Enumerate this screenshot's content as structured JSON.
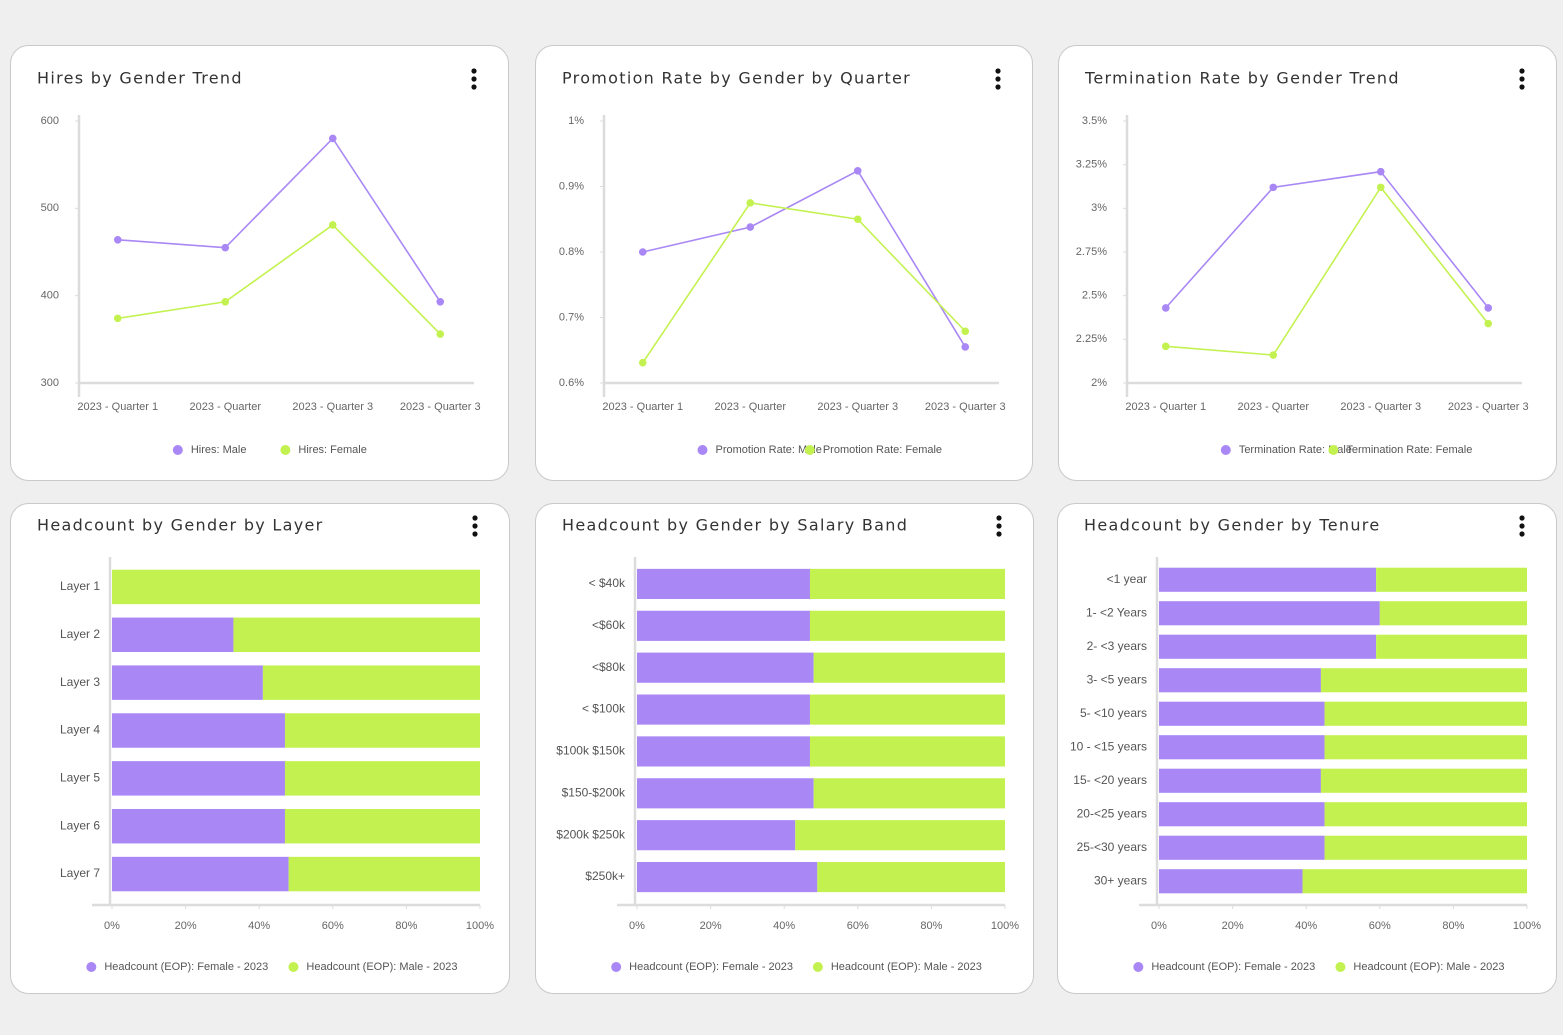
{
  "chart_data": [
    {
      "type": "line",
      "title": "Hires by Gender Trend",
      "categories": [
        "2023 - Quarter 1",
        "2023 - Quarter",
        "2023 - Quarter 3",
        "2023 - Quarter 3"
      ],
      "series": [
        {
          "name": "Hires: Male",
          "color": "#a987f5",
          "values": [
            464,
            455,
            580,
            393
          ]
        },
        {
          "name": "Hires: Female",
          "color": "#c3f250",
          "values": [
            374,
            393,
            481,
            356
          ]
        }
      ],
      "ylim": [
        300,
        600
      ],
      "yticks": [
        300,
        400,
        500,
        600
      ],
      "grid": false,
      "legend": "bottom"
    },
    {
      "type": "line",
      "title": "Promotion Rate by Gender by Quarter",
      "categories": [
        "2023 - Quarter 1",
        "2023 - Quarter",
        "2023 - Quarter 3",
        "2023 - Quarter 3"
      ],
      "series": [
        {
          "name": "Promotion Rate: Male",
          "color": "#a987f5",
          "values": [
            0.8,
            0.838,
            0.924,
            0.655
          ]
        },
        {
          "name": "Promotion Rate: Female",
          "color": "#c3f250",
          "values": [
            0.631,
            0.875,
            0.85,
            0.679
          ]
        }
      ],
      "ylim": [
        0.6,
        1.0
      ],
      "yticks": [
        {
          "value": 0.6,
          "label": "0.6%"
        },
        {
          "value": 0.7,
          "label": "0.7%"
        },
        {
          "value": 0.8,
          "label": "0.8%"
        },
        {
          "value": 0.9,
          "label": "0.9%"
        },
        {
          "value": 1,
          "label": "1%"
        }
      ],
      "grid": false,
      "legend": "bottom"
    },
    {
      "type": "line",
      "title": "Termination Rate by Gender Trend",
      "categories": [
        "2023 - Quarter 1",
        "2023 - Quarter",
        "2023 - Quarter 3",
        "2023 - Quarter 3"
      ],
      "series": [
        {
          "name": "Termination Rate: Male",
          "color": "#a987f5",
          "values": [
            2.43,
            3.12,
            3.21,
            2.43
          ]
        },
        {
          "name": "Termination Rate: Female",
          "color": "#c3f250",
          "values": [
            2.21,
            2.16,
            3.12,
            2.34
          ]
        }
      ],
      "ylim": [
        2,
        3.5
      ],
      "yticks": [
        {
          "value": 2,
          "label": "2%"
        },
        {
          "value": 2.25,
          "label": "2.25%"
        },
        {
          "value": 2.5,
          "label": "2.5%"
        },
        {
          "value": 2.75,
          "label": "2.75%"
        },
        {
          "value": 3,
          "label": "3%"
        },
        {
          "value": 3.25,
          "label": "3.25%"
        },
        {
          "value": 3.5,
          "label": "3.5%"
        }
      ],
      "grid": false,
      "legend": "bottom"
    },
    {
      "type": "bar",
      "orientation": "horizontal",
      "stacked": true,
      "title": "Headcount by Gender by Layer",
      "categories": [
        "Layer 1",
        "Layer 2",
        "Layer 3",
        "Layer 4",
        "Layer 5",
        "Layer 6",
        "Layer 7"
      ],
      "series": [
        {
          "name": "Headcount (EOP): Female - 2023",
          "color": "#a987f5",
          "values": [
            0,
            33,
            41,
            47,
            47,
            47,
            48
          ]
        },
        {
          "name": "Headcount (EOP): Male - 2023",
          "color": "#c3f250",
          "values": [
            100,
            67,
            59,
            53,
            53,
            53,
            52
          ]
        }
      ],
      "xlim": [
        0,
        100
      ],
      "xticks": [
        {
          "value": 0,
          "label": "0%"
        },
        {
          "value": 20,
          "label": "20%"
        },
        {
          "value": 40,
          "label": "40%"
        },
        {
          "value": 60,
          "label": "60%"
        },
        {
          "value": 80,
          "label": "80%"
        },
        {
          "value": 100,
          "label": "100%"
        }
      ],
      "grid": false,
      "legend": "bottom"
    },
    {
      "type": "bar",
      "orientation": "horizontal",
      "stacked": true,
      "title": "Headcount by Gender by Salary Band",
      "categories": [
        "< $40k",
        "<$60k",
        "<$80k",
        "< $100k",
        "$100k $150k",
        "$150-$200k",
        "$200k $250k",
        "$250k+"
      ],
      "series": [
        {
          "name": "Headcount (EOP): Female - 2023",
          "color": "#a987f5",
          "values": [
            47,
            47,
            48,
            47,
            47,
            48,
            43,
            49
          ]
        },
        {
          "name": "Headcount (EOP): Male - 2023",
          "color": "#c3f250",
          "values": [
            53,
            53,
            52,
            53,
            53,
            52,
            57,
            51
          ]
        }
      ],
      "xlim": [
        0,
        100
      ],
      "xticks": [
        {
          "value": 0,
          "label": "0%"
        },
        {
          "value": 20,
          "label": "20%"
        },
        {
          "value": 40,
          "label": "40%"
        },
        {
          "value": 60,
          "label": "60%"
        },
        {
          "value": 80,
          "label": "80%"
        },
        {
          "value": 100,
          "label": "100%"
        }
      ],
      "grid": false,
      "legend": "bottom"
    },
    {
      "type": "bar",
      "orientation": "horizontal",
      "stacked": true,
      "title": "Headcount by Gender by Tenure",
      "categories": [
        "<1 year",
        "1- <2 Years",
        "2- <3 years",
        "3- <5 years",
        "5- <10 years",
        "10 - <15 years",
        "15- <20 years",
        "20-<25 years",
        "25-<30 years",
        "30+ years"
      ],
      "series": [
        {
          "name": "Headcount (EOP): Female - 2023",
          "color": "#a987f5",
          "values": [
            59,
            60,
            59,
            44,
            45,
            45,
            44,
            45,
            45,
            39
          ]
        },
        {
          "name": "Headcount (EOP): Male - 2023",
          "color": "#c3f250",
          "values": [
            41,
            40,
            41,
            56,
            55,
            55,
            56,
            55,
            55,
            61
          ]
        }
      ],
      "xlim": [
        0,
        100
      ],
      "xticks": [
        {
          "value": 0,
          "label": "0%"
        },
        {
          "value": 20,
          "label": "20%"
        },
        {
          "value": 40,
          "label": "40%"
        },
        {
          "value": 60,
          "label": "60%"
        },
        {
          "value": 80,
          "label": "80%"
        },
        {
          "value": 100,
          "label": "100%"
        }
      ],
      "grid": false,
      "legend": "bottom"
    }
  ]
}
